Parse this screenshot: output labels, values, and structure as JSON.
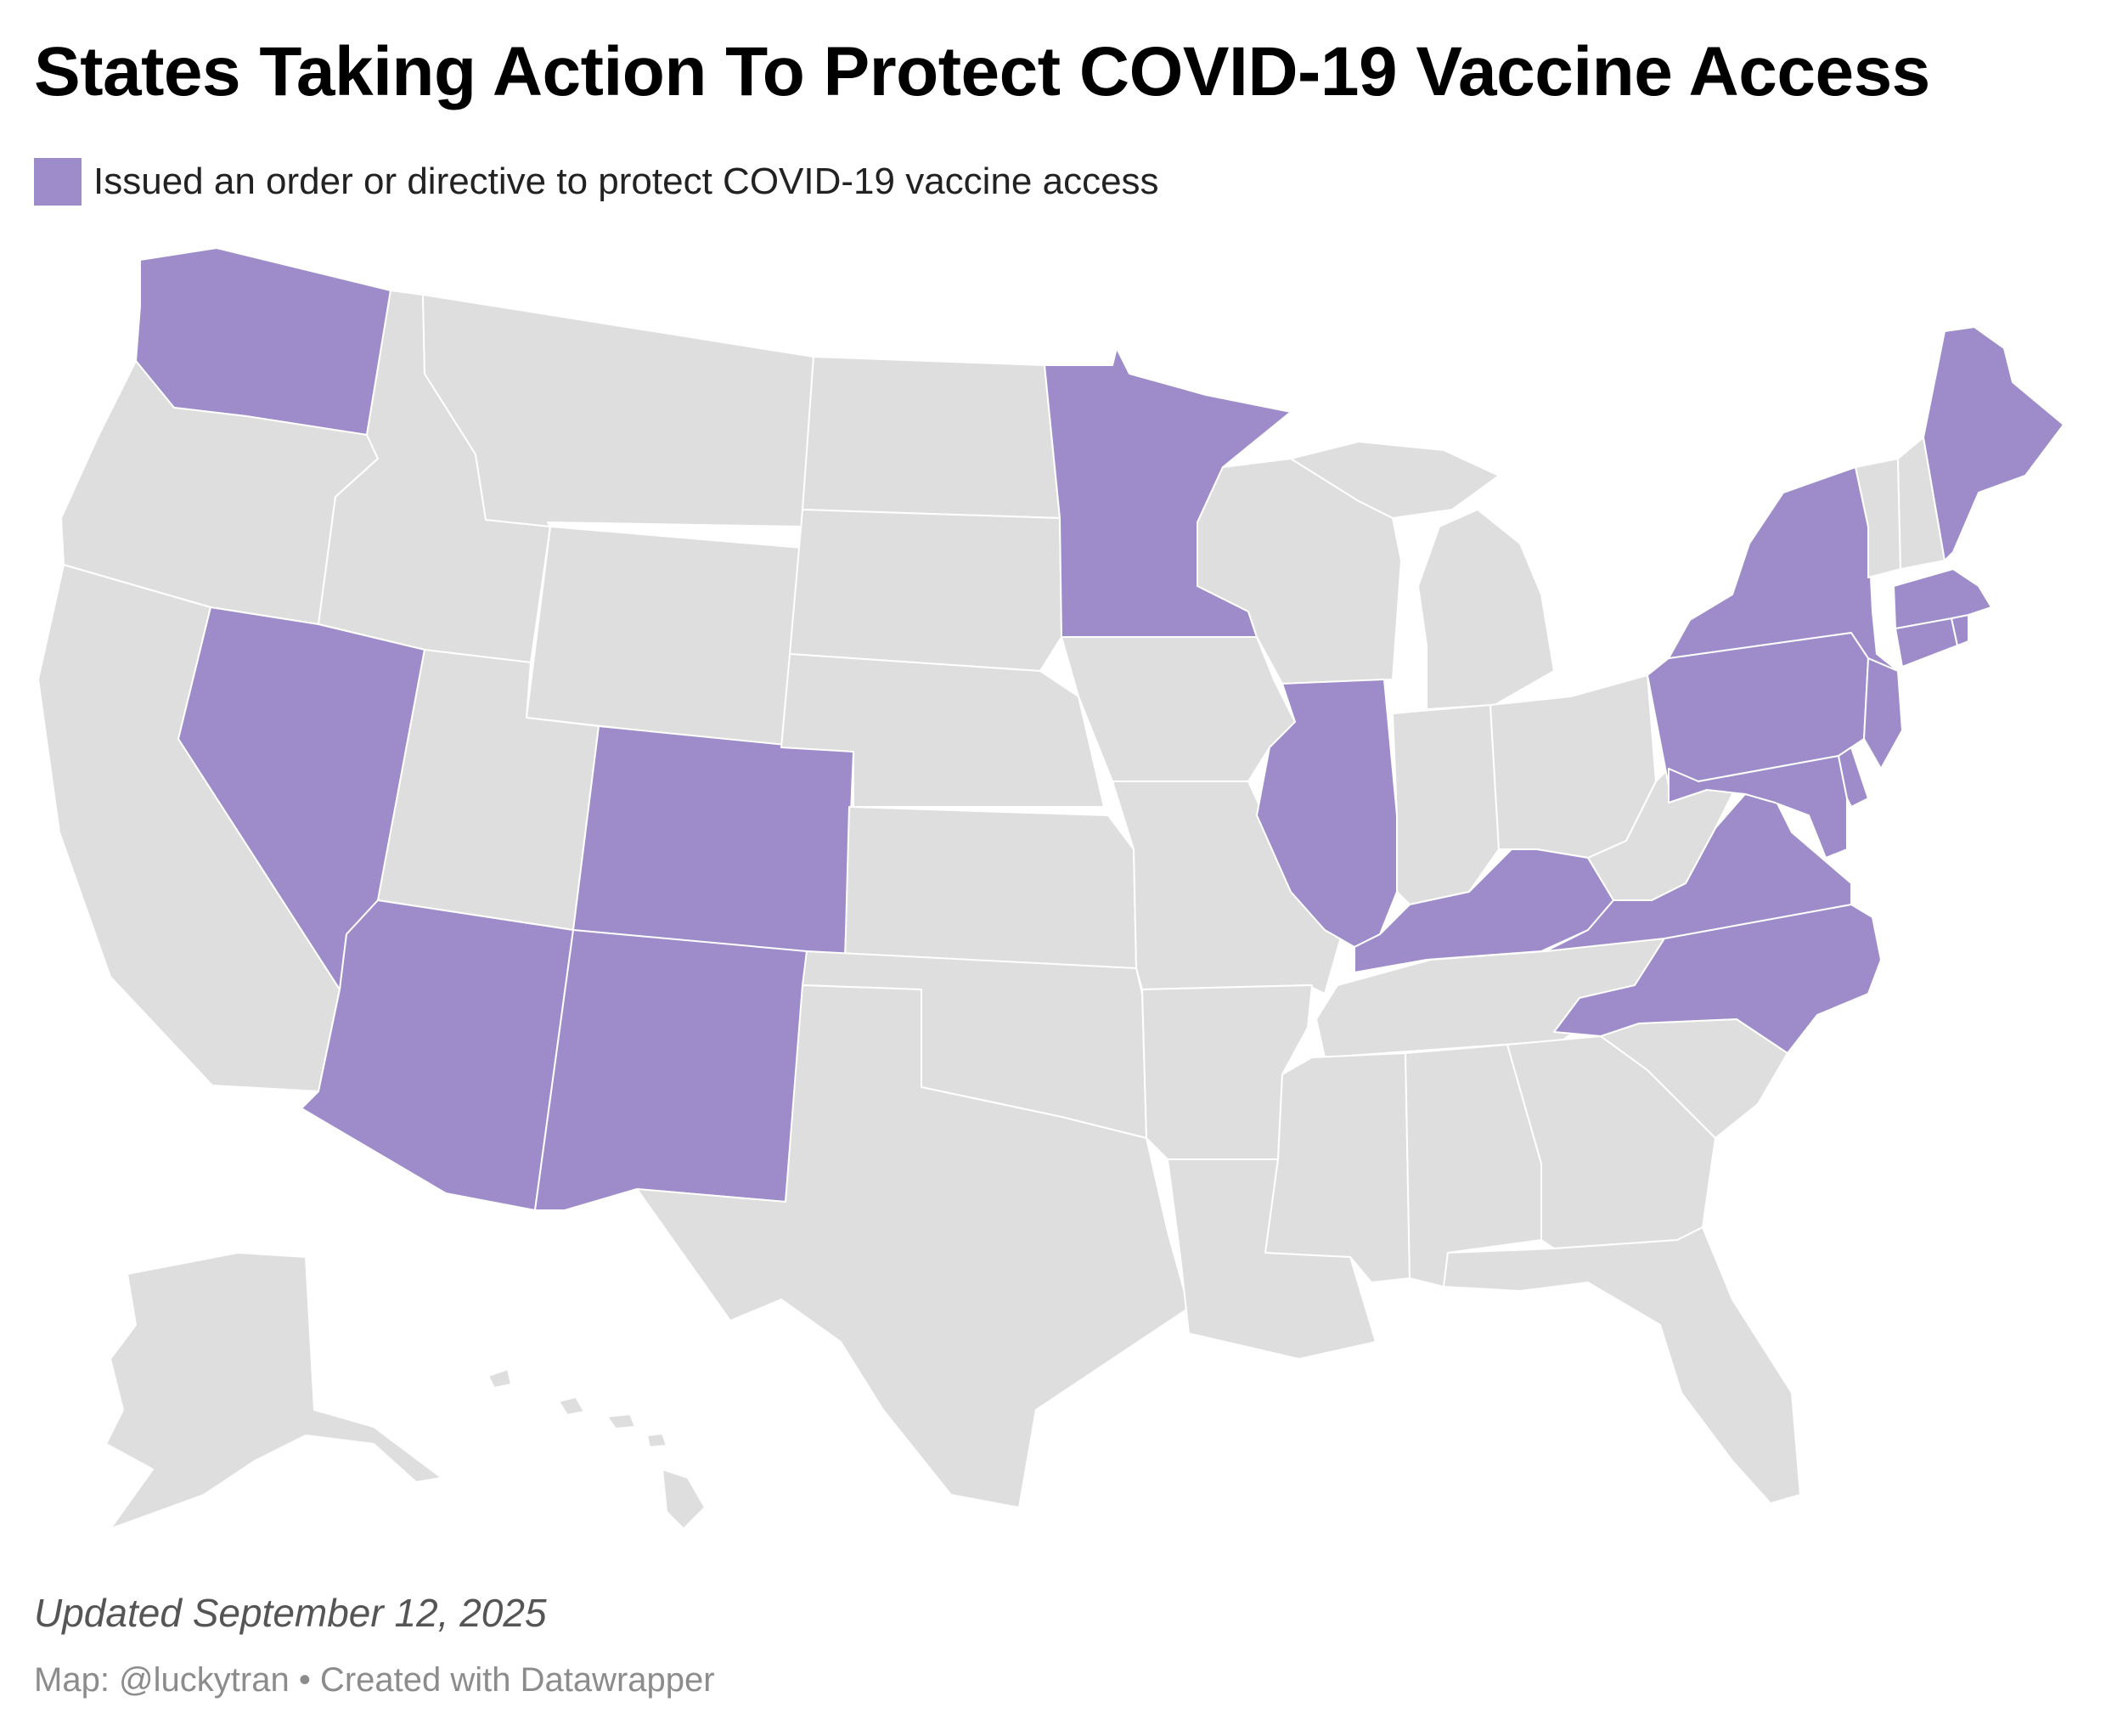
{
  "title": "States Taking Action To Protect COVID-19 Vaccine Access",
  "legend": {
    "label": "Issued an order or directive to protect COVID-19 vaccine access",
    "color": "#9d8bca"
  },
  "colors": {
    "highlight": "#9d8bca",
    "default": "#dedede",
    "border": "#ffffff"
  },
  "highlighted_states": [
    "WA",
    "NV",
    "AZ",
    "CO",
    "NM",
    "MN",
    "IL",
    "KY",
    "VA",
    "NC",
    "PA",
    "NY",
    "NJ",
    "DE",
    "MD",
    "CT",
    "RI",
    "MA",
    "ME"
  ],
  "footer": {
    "updated": "Updated September 12, 2025",
    "credit": "Map: @luckytran • Created with Datawrapper"
  }
}
